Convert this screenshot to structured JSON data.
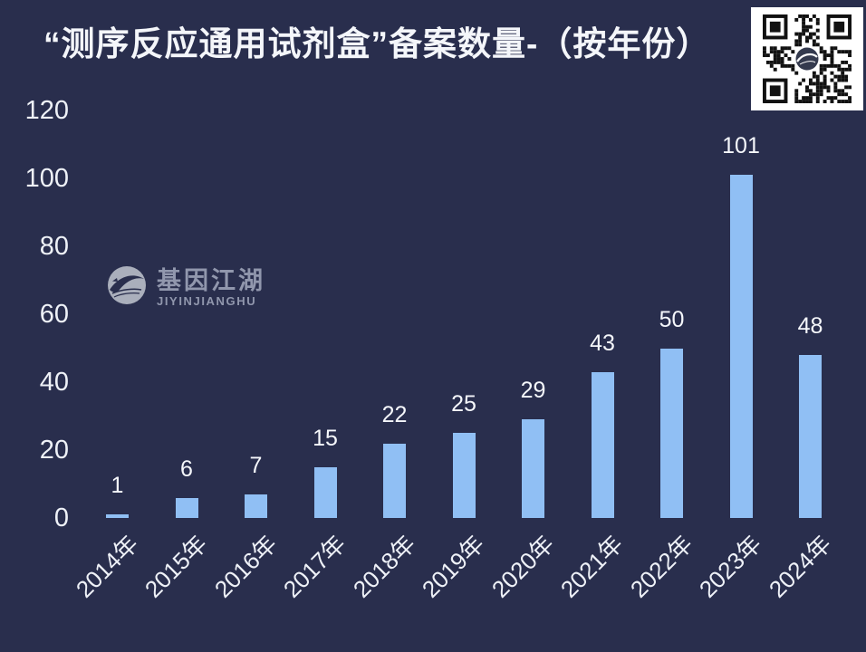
{
  "title": "“测序反应通用试剂盒”备案数量-（按年份）",
  "watermark": {
    "name": "基因江湖",
    "subtitle": "JIYINJIANGHU"
  },
  "qr_code": {
    "present": true,
    "description": "qr-code-with-center-logo"
  },
  "colors": {
    "background": "#292e4d",
    "bar": "#90bff4",
    "title_text": "#f4f6fa",
    "axis_text": "#eef1f7",
    "watermark_text": "#9aa0b6",
    "qr_background": "#ffffff",
    "qr_modules": "#111111"
  },
  "chart_data": {
    "type": "bar",
    "title": "“测序反应通用试剂盒”备案数量-（按年份）",
    "categories": [
      "2014年",
      "2015年",
      "2016年",
      "2017年",
      "2018年",
      "2019年",
      "2020年",
      "2021年",
      "2022年",
      "2023年",
      "2024年"
    ],
    "values": [
      1,
      6,
      7,
      15,
      22,
      25,
      29,
      43,
      50,
      101,
      48
    ],
    "xlabel": "",
    "ylabel": "",
    "ylim": [
      0,
      120
    ],
    "yticks": [
      0,
      20,
      40,
      60,
      80,
      100,
      120
    ],
    "grid": false,
    "legend": false,
    "data_labels": true,
    "x_tick_rotation": -45,
    "bar_color": "#90bff4"
  }
}
